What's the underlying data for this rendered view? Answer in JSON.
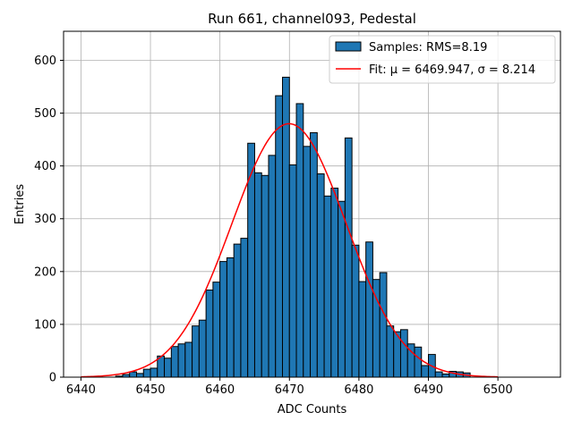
{
  "chart_data": {
    "type": "bar",
    "title": "Run 661, channel093, Pedestal",
    "xlabel": "ADC Counts",
    "ylabel": "Entries",
    "xlim": [
      6437.5,
      6509.0
    ],
    "ylim": [
      0,
      655
    ],
    "xticks": [
      6440,
      6450,
      6460,
      6470,
      6480,
      6490,
      6500
    ],
    "yticks": [
      0,
      100,
      200,
      300,
      400,
      500,
      600
    ],
    "grid": true,
    "legend_position": "top-right",
    "bin_width": 1,
    "series": [
      {
        "name": "Samples: RMS=8.19",
        "kind": "histogram",
        "color": "#1f77b4",
        "edge_color": "#000000",
        "bin_left_edges": [
          6445,
          6446,
          6447,
          6448,
          6449,
          6450,
          6451,
          6452,
          6453,
          6454,
          6455,
          6456,
          6457,
          6458,
          6459,
          6460,
          6461,
          6462,
          6463,
          6464,
          6465,
          6466,
          6467,
          6468,
          6469,
          6470,
          6471,
          6472,
          6473,
          6474,
          6475,
          6476,
          6477,
          6478,
          6479,
          6480,
          6481,
          6482,
          6483,
          6484,
          6485,
          6486,
          6487,
          6488,
          6489,
          6490,
          6491,
          6492,
          6493,
          6494,
          6495
        ],
        "values": [
          2,
          5,
          10,
          7,
          15,
          17,
          40,
          36,
          58,
          63,
          66,
          97,
          108,
          165,
          180,
          219,
          226,
          252,
          263,
          443,
          387,
          382,
          420,
          533,
          568,
          402,
          518,
          437,
          463,
          385,
          343,
          358,
          333,
          453,
          250,
          181,
          256,
          185,
          198,
          97,
          86,
          90,
          63,
          57,
          22,
          43,
          10,
          6,
          11,
          10,
          8
        ]
      },
      {
        "name": "Fit: μ = 6469.947, σ = 8.214",
        "kind": "gaussian-fit",
        "color": "#ff0000",
        "mu": 6469.947,
        "sigma": 8.214,
        "amplitude": 480,
        "x_range": [
          6440,
          6500
        ]
      }
    ]
  }
}
